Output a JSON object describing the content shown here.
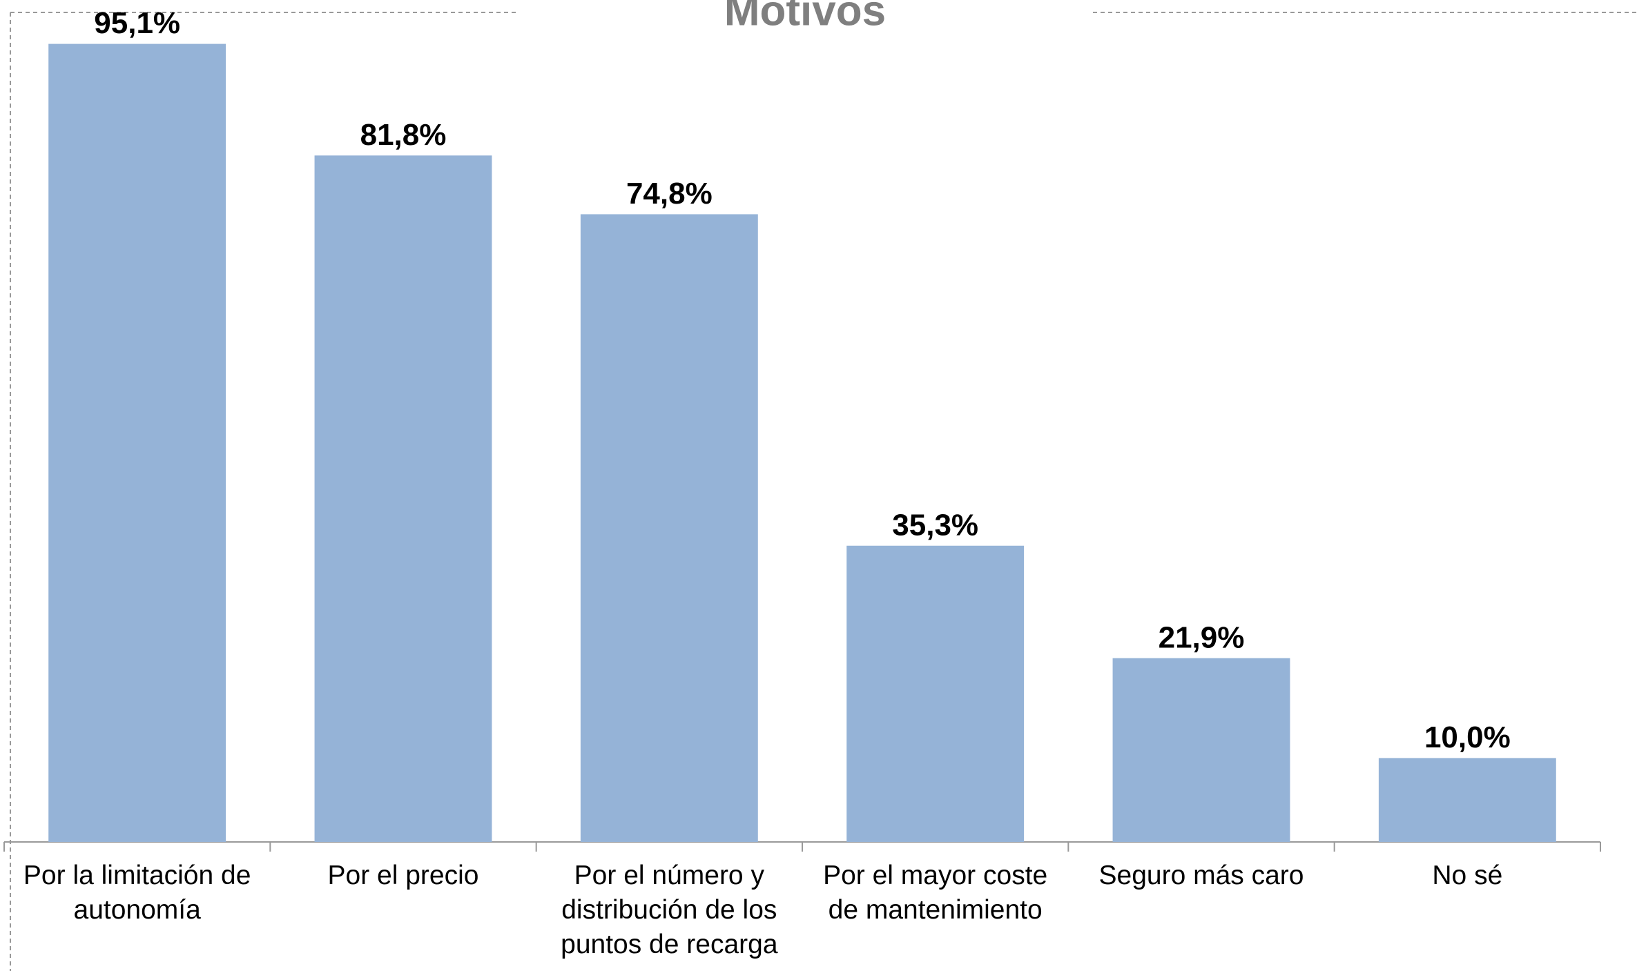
{
  "chart_data": {
    "type": "bar",
    "title": "Motivos",
    "categories": [
      "Por la limitación de autonomía",
      "Por el precio",
      "Por el número y distribución de los puntos de recarga",
      "Por el mayor coste de mantenimiento",
      "Seguro más caro",
      "No sé"
    ],
    "values": [
      95.1,
      81.8,
      74.8,
      35.3,
      21.9,
      10.0
    ],
    "value_labels": [
      "95,1%",
      "81,8%",
      "74,8%",
      "35,3%",
      "21,9%",
      "10,0%"
    ],
    "color": "#95b3d7"
  }
}
